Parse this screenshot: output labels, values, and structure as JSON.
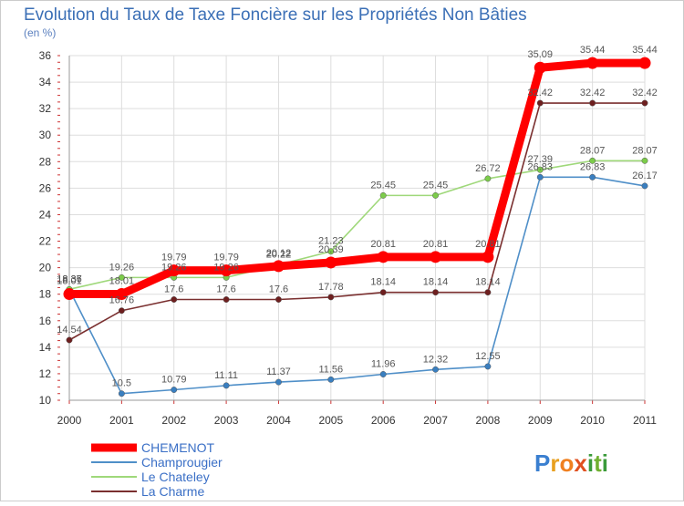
{
  "chart_data": {
    "type": "line",
    "title": "Evolution du Taux de Taxe Foncière sur les Propriétés Non Bâties",
    "subtitle": "(en %)",
    "categories": [
      "2000",
      "2001",
      "2002",
      "2003",
      "2004",
      "2005",
      "2006",
      "2007",
      "2008",
      "2009",
      "2010",
      "2011"
    ],
    "ylim": [
      10,
      36
    ],
    "yticks": [
      10,
      12,
      14,
      16,
      18,
      20,
      22,
      24,
      26,
      28,
      30,
      32,
      34,
      36
    ],
    "grid": true,
    "legend_position": "bottom-left",
    "series": [
      {
        "name": "Champrougier",
        "color": "#4f8fc8",
        "marker_color": "#3a7fc0",
        "values": [
          18.36,
          10.5,
          10.79,
          11.11,
          11.37,
          11.56,
          11.96,
          12.32,
          12.55,
          26.83,
          26.83,
          26.17
        ]
      },
      {
        "name": "Le Chateley",
        "color": "#9fd87a",
        "marker_color": "#7ccc4a",
        "values": [
          18.37,
          19.26,
          19.26,
          19.26,
          20.22,
          21.23,
          25.45,
          25.45,
          26.72,
          27.39,
          28.07,
          28.07
        ]
      },
      {
        "name": "La Charme",
        "color": "#7a2f2f",
        "marker_color": "#6e1f1f",
        "values": [
          14.54,
          16.76,
          17.6,
          17.6,
          17.6,
          17.78,
          18.14,
          18.14,
          18.14,
          32.42,
          32.42,
          32.42
        ]
      },
      {
        "name": "CHEMENOT",
        "color": "#ff0000",
        "marker_color": "#ff0000",
        "values": [
          18.01,
          18.01,
          19.79,
          19.79,
          20.12,
          20.39,
          20.81,
          20.81,
          20.81,
          35.09,
          35.44,
          35.44
        ]
      }
    ],
    "legend_order": [
      "CHEMENOT",
      "Champrougier",
      "Le Chateley",
      "La Charme"
    ]
  },
  "branding": {
    "logo_text": "Proxiti",
    "logo_letters": [
      "P",
      "r",
      "o",
      "x",
      "i",
      "t",
      "i"
    ],
    "logo_colors": [
      "#3a7fd0",
      "#e8a020",
      "#f08020",
      "#e05020",
      "#3a9a3a",
      "#70b030",
      "#3a9a3a"
    ]
  }
}
